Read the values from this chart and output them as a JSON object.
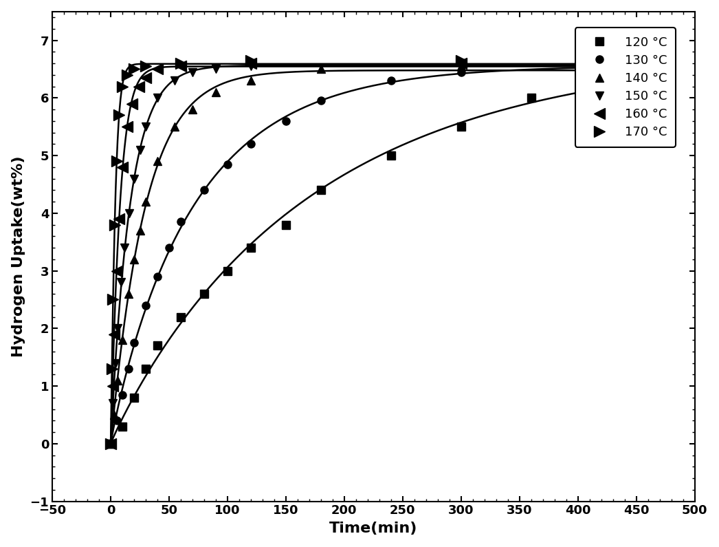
{
  "title": "",
  "xlabel": "Time(min)",
  "ylabel": "Hydrogen Uptake(wt%)",
  "xlim": [
    -50,
    500
  ],
  "ylim": [
    -1,
    7.5
  ],
  "xticks": [
    -50,
    0,
    50,
    100,
    150,
    200,
    250,
    300,
    350,
    400,
    450,
    500
  ],
  "yticks": [
    -1,
    0,
    1,
    2,
    3,
    4,
    5,
    6,
    7
  ],
  "series": [
    {
      "label": "120 °C",
      "marker": "s",
      "time": [
        0,
        10,
        20,
        30,
        40,
        60,
        80,
        100,
        120,
        150,
        180,
        240,
        300,
        360,
        420
      ],
      "uptake": [
        0,
        0.3,
        0.8,
        1.3,
        1.7,
        2.2,
        2.6,
        3.0,
        3.4,
        3.8,
        4.4,
        5.0,
        5.5,
        6.0,
        6.5
      ]
    },
    {
      "label": "130 °C",
      "marker": "o",
      "time": [
        0,
        5,
        10,
        15,
        20,
        30,
        40,
        50,
        60,
        80,
        100,
        120,
        150,
        180,
        240,
        300,
        420
      ],
      "uptake": [
        0,
        0.4,
        0.85,
        1.3,
        1.75,
        2.4,
        2.9,
        3.4,
        3.85,
        4.4,
        4.85,
        5.2,
        5.6,
        5.95,
        6.3,
        6.45,
        6.55
      ]
    },
    {
      "label": "140 °C",
      "marker": "^",
      "time": [
        0,
        3,
        6,
        10,
        15,
        20,
        25,
        30,
        40,
        55,
        70,
        90,
        120,
        180,
        300,
        420
      ],
      "uptake": [
        0,
        0.5,
        1.1,
        1.8,
        2.6,
        3.2,
        3.7,
        4.2,
        4.9,
        5.5,
        5.8,
        6.1,
        6.3,
        6.5,
        6.55,
        6.55
      ]
    },
    {
      "label": "150 °C",
      "marker": "v",
      "time": [
        0,
        2,
        4,
        6,
        9,
        12,
        16,
        20,
        25,
        30,
        40,
        55,
        70,
        90,
        120,
        300,
        420
      ],
      "uptake": [
        0,
        0.7,
        1.4,
        2.0,
        2.8,
        3.4,
        4.0,
        4.6,
        5.1,
        5.5,
        6.0,
        6.3,
        6.45,
        6.5,
        6.55,
        6.6,
        6.6
      ]
    },
    {
      "label": "160 °C",
      "marker": "left",
      "time": [
        0,
        1.5,
        3,
        5,
        7,
        10,
        14,
        18,
        24,
        30,
        40,
        60,
        120,
        300,
        420
      ],
      "uptake": [
        0,
        1.0,
        1.9,
        3.0,
        3.9,
        4.8,
        5.5,
        5.9,
        6.2,
        6.35,
        6.5,
        6.55,
        6.6,
        6.6,
        6.6
      ]
    },
    {
      "label": "170 °C",
      "marker": "right",
      "time": [
        0,
        1,
        2,
        3.5,
        5,
        7,
        10,
        14,
        20,
        30,
        60,
        120,
        300,
        420
      ],
      "uptake": [
        0,
        1.3,
        2.5,
        3.8,
        4.9,
        5.7,
        6.2,
        6.4,
        6.5,
        6.55,
        6.6,
        6.65,
        6.65,
        6.65
      ]
    }
  ]
}
